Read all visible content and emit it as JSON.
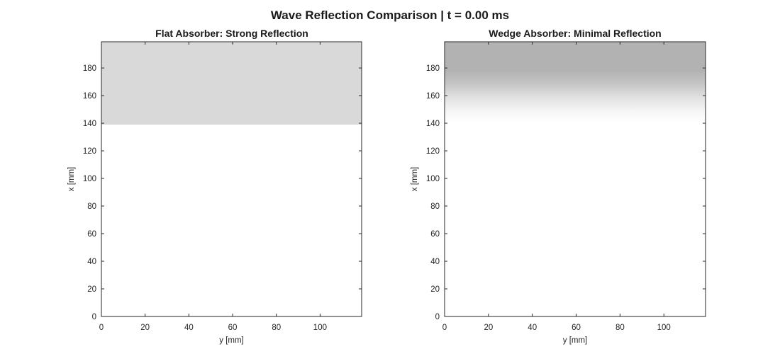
{
  "figure": {
    "title": "Wave Reflection Comparison | t = 0.00 ms"
  },
  "chart_data": [
    {
      "type": "heatmap",
      "title": "Flat Absorber: Strong Reflection",
      "xlabel": "y [mm]",
      "ylabel": "x [mm]",
      "xlim": [
        0,
        119
      ],
      "ylim": [
        0,
        199
      ],
      "xticks": [
        0,
        20,
        40,
        60,
        80,
        100
      ],
      "yticks": [
        0,
        20,
        40,
        60,
        80,
        100,
        120,
        140,
        160,
        180
      ],
      "grid": false,
      "absorber": {
        "shape": "flat",
        "x_start": 139,
        "x_end": 199,
        "color": "#d9d9d9"
      }
    },
    {
      "type": "heatmap",
      "title": "Wedge Absorber: Minimal Reflection",
      "xlabel": "y [mm]",
      "ylabel": "x [mm]",
      "xlim": [
        0,
        119
      ],
      "ylim": [
        0,
        199
      ],
      "xticks": [
        0,
        20,
        40,
        60,
        80,
        100
      ],
      "yticks": [
        0,
        20,
        40,
        60,
        80,
        100,
        120,
        140,
        160,
        180
      ],
      "grid": false,
      "absorber": {
        "shape": "wedge",
        "x_start": 140,
        "x_full": 178,
        "x_end": 199,
        "color": "#b2b2b2"
      }
    }
  ]
}
